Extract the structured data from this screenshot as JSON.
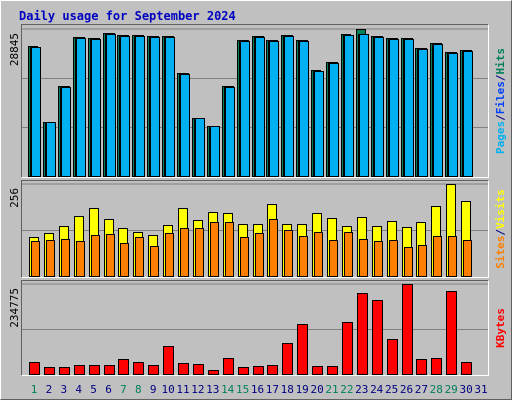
{
  "chart_data": [
    {
      "type": "bar",
      "title": "Daily usage for September 2024",
      "categories": [
        "1",
        "2",
        "3",
        "4",
        "5",
        "6",
        "7",
        "8",
        "9",
        "10",
        "11",
        "12",
        "13",
        "14",
        "15",
        "16",
        "17",
        "18",
        "19",
        "20",
        "21",
        "22",
        "23",
        "24",
        "25",
        "26",
        "27",
        "28",
        "29",
        "30",
        "31"
      ],
      "category_colors": [
        "#00805c",
        "#000080",
        "#000080",
        "#000080",
        "#000080",
        "#000080",
        "#00805c",
        "#00805c",
        "#000080",
        "#000080",
        "#000080",
        "#000080",
        "#000080",
        "#00805c",
        "#00805c",
        "#000080",
        "#000080",
        "#000080",
        "#000080",
        "#000080",
        "#00805c",
        "#00805c",
        "#000080",
        "#000080",
        "#000080",
        "#000080",
        "#000080",
        "#00805c",
        "#00805c",
        "#000080",
        "#000080"
      ],
      "separator": "/",
      "series": [
        {
          "name": "Hits",
          "color": "#00805c",
          "values": [
            25500,
            10600,
            17660,
            27270,
            27080,
            28060,
            27660,
            27660,
            27470,
            27470,
            20210,
            11380,
            9810,
            17660,
            26680,
            27470,
            26680,
            27660,
            26680,
            20800,
            22370,
            27860,
            28845,
            27470,
            27080,
            27080,
            25110,
            26090,
            24330,
            24720,
            null
          ]
        },
        {
          "name": "Files",
          "color": "#0040ff",
          "values": [
            25400,
            10550,
            17600,
            27200,
            27000,
            28000,
            27600,
            27600,
            27400,
            27400,
            20150,
            11330,
            9780,
            17600,
            26600,
            27400,
            26600,
            27600,
            26600,
            20700,
            22300,
            27700,
            27900,
            27400,
            27000,
            27000,
            25050,
            26000,
            24250,
            24650,
            null
          ]
        },
        {
          "name": "Pages",
          "color": "#00b0f0",
          "values": [
            25300,
            10500,
            17500,
            27100,
            26900,
            27900,
            27500,
            27500,
            27300,
            27300,
            20100,
            11300,
            9750,
            17500,
            26500,
            27300,
            26500,
            27500,
            26500,
            20600,
            22200,
            27600,
            27860,
            27300,
            26900,
            26900,
            25000,
            25900,
            24200,
            24600,
            null
          ]
        }
      ],
      "ylim": [
        0,
        28845
      ],
      "yticks": [
        28845
      ]
    },
    {
      "type": "bar",
      "series": [
        {
          "name": "Visits",
          "color": "#ffff00",
          "values": [
            108,
            120,
            139,
            167,
            189,
            159,
            134,
            122,
            114,
            142,
            189,
            156,
            178,
            175,
            145,
            145,
            200,
            145,
            145,
            175,
            161,
            139,
            164,
            139,
            153,
            136,
            150,
            195,
            256,
            209,
            null
          ]
        },
        {
          "name": "Sites",
          "color": "#ff8000",
          "values": [
            97,
            100,
            103,
            97,
            114,
            117,
            92,
            109,
            83,
            120,
            134,
            134,
            150,
            150,
            109,
            120,
            159,
            128,
            111,
            122,
            100,
            122,
            103,
            97,
            100,
            81,
            86,
            111,
            111,
            100,
            null
          ]
        }
      ],
      "ylim": [
        0,
        256
      ],
      "yticks": [
        256
      ]
    },
    {
      "type": "bar",
      "series": [
        {
          "name": "KBytes",
          "color": "#ff0000",
          "values": [
            31300,
            18260,
            18260,
            23480,
            23480,
            23480,
            39130,
            31300,
            23480,
            73050,
            28700,
            26090,
            10440,
            41740,
            18260,
            20870,
            23480,
            80880,
            130450,
            20870,
            20870,
            135670,
            211330,
            193060,
            91310,
            234775,
            39130,
            41740,
            216550,
            31300,
            null
          ]
        }
      ],
      "ylim": [
        0,
        234775
      ],
      "yticks": [
        234775
      ]
    }
  ]
}
